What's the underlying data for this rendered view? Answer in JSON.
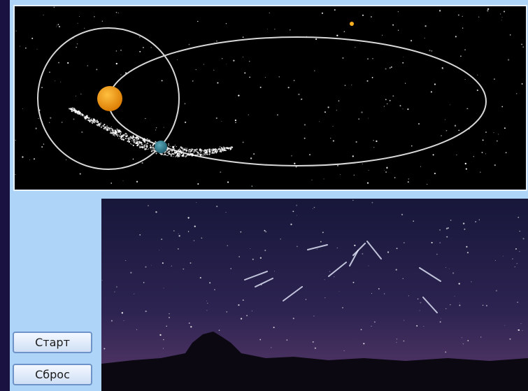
{
  "buttons": [
    "Старт",
    "Сброс"
  ]
}
